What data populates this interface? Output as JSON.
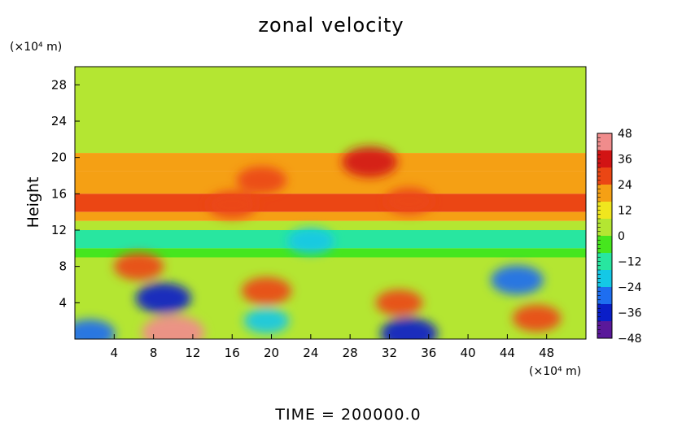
{
  "chart_data": {
    "type": "heatmap",
    "title": "zonal velocity",
    "ylabel": "Height",
    "xlabel": "",
    "x_unit": "(×10⁴ m)",
    "y_unit": "(×10⁴ m)",
    "footer": "TIME  =  200000.0",
    "xlim": [
      0,
      52
    ],
    "ylim": [
      0,
      30
    ],
    "x_ticks": [
      4,
      8,
      12,
      16,
      20,
      24,
      28,
      32,
      36,
      40,
      44,
      48
    ],
    "y_ticks": [
      4,
      8,
      12,
      16,
      20,
      24,
      28
    ],
    "colorbar": {
      "ticks": [
        48,
        36,
        24,
        12,
        0,
        -12,
        -24,
        -36,
        -48
      ],
      "range": [
        -48,
        48
      ],
      "colors": [
        "#5a189a",
        "#0a1ec8",
        "#1e6ef0",
        "#14c8e6",
        "#28e6a0",
        "#46e61e",
        "#b4e632",
        "#f0e61e",
        "#f5a014",
        "#eb4614",
        "#d21414",
        "#f08c8c"
      ]
    },
    "bands": [
      {
        "y": [
          20.5,
          30
        ],
        "value": 2
      },
      {
        "y": [
          18.5,
          20.5
        ],
        "value": 16
      },
      {
        "y": [
          16,
          18.5
        ],
        "value": 20
      },
      {
        "y": [
          14,
          16
        ],
        "value": 26
      },
      {
        "y": [
          13,
          14
        ],
        "value": 16
      },
      {
        "y": [
          12,
          13
        ],
        "value": 2
      },
      {
        "y": [
          10,
          12
        ],
        "value": -14
      },
      {
        "y": [
          9,
          10
        ],
        "value": -8
      },
      {
        "y": [
          0,
          9
        ],
        "value": 4
      }
    ],
    "features": [
      {
        "x": 30,
        "y": 19.5,
        "value": 36
      },
      {
        "x": 19,
        "y": 17.5,
        "value": 28
      },
      {
        "x": 16,
        "y": 14.8,
        "value": 28
      },
      {
        "x": 34,
        "y": 15.2,
        "value": 26
      },
      {
        "x": 24,
        "y": 10.8,
        "value": -24
      },
      {
        "x": 9,
        "y": 4.5,
        "value": -36
      },
      {
        "x": 10,
        "y": 0.7,
        "value": 46
      },
      {
        "x": 19.5,
        "y": 5.3,
        "value": 28
      },
      {
        "x": 19.5,
        "y": 2,
        "value": -22
      },
      {
        "x": 34,
        "y": 0.6,
        "value": -38
      },
      {
        "x": 45,
        "y": 6.5,
        "value": -32
      },
      {
        "x": 47,
        "y": 2.3,
        "value": 26
      },
      {
        "x": 33,
        "y": 4,
        "value": 24
      },
      {
        "x": 6.5,
        "y": 8,
        "value": 28
      },
      {
        "x": 1.5,
        "y": 0.6,
        "value": -30
      }
    ]
  }
}
